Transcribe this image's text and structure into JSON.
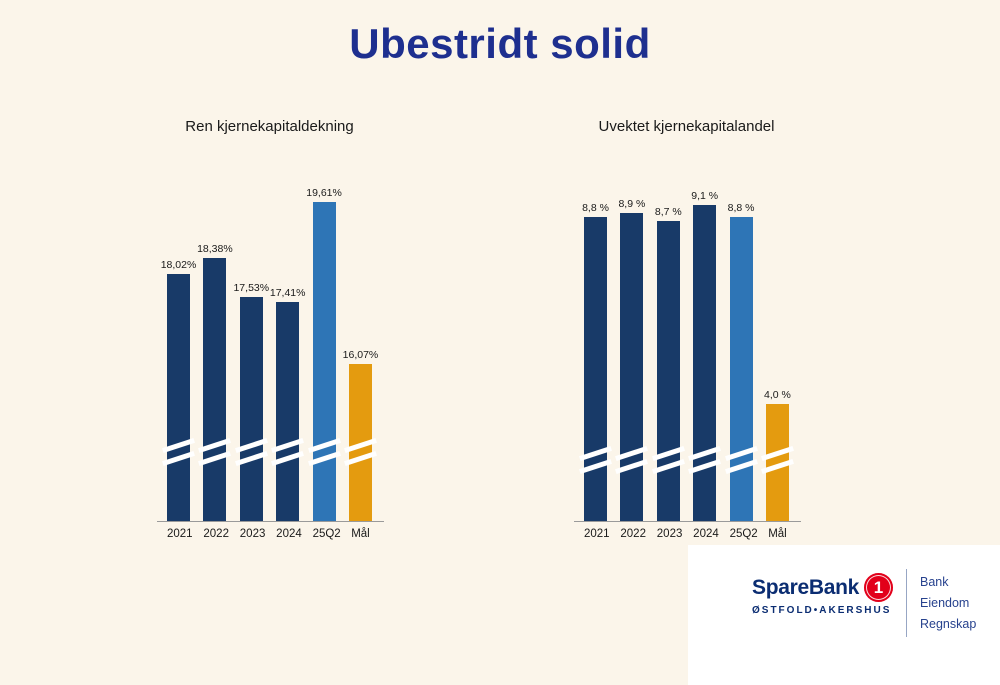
{
  "page": {
    "title": "Ubestridt solid"
  },
  "colors": {
    "background": "#fbf5ea",
    "navy": "#183a68",
    "lightblue": "#2e75b6",
    "orange": "#e49b0f",
    "title_blue": "#1e2f8f",
    "logo_blue": "#0b2d72",
    "logo_red": "#e2001a",
    "services_blue": "#27428e"
  },
  "chart_data": [
    {
      "type": "bar",
      "title": "Ren kjernekapitaldekning",
      "categories": [
        "2021",
        "2022",
        "2023",
        "2024",
        "25Q2",
        "Mål"
      ],
      "values": [
        18.02,
        18.38,
        17.53,
        17.41,
        19.61,
        16.07
      ],
      "value_labels": [
        "18,02%",
        "18,38%",
        "17,53%",
        "17,41%",
        "19,61%",
        "16,07%"
      ],
      "bar_colors": [
        "navy",
        "navy",
        "navy",
        "navy",
        "lightblue",
        "orange"
      ],
      "unit": "%",
      "axis_break": true,
      "grid": false,
      "legend": "none"
    },
    {
      "type": "bar",
      "title": "Uvektet kjernekapitalandel",
      "categories": [
        "2021",
        "2022",
        "2023",
        "2024",
        "25Q2",
        "Mål"
      ],
      "values": [
        8.8,
        8.9,
        8.7,
        9.1,
        8.8,
        4.0
      ],
      "value_labels": [
        "8,8 %",
        "8,9 %",
        "8,7 %",
        "9,1 %",
        "8,8 %",
        "4,0 %"
      ],
      "bar_colors": [
        "navy",
        "navy",
        "navy",
        "navy",
        "lightblue",
        "orange"
      ],
      "unit": "%",
      "axis_break": true,
      "grid": false,
      "legend": "none"
    }
  ],
  "logo": {
    "brand": "SpareBank",
    "badge": "1",
    "region": "ØSTFOLD•AKERSHUS",
    "services": [
      "Bank",
      "Eiendom",
      "Regnskap"
    ]
  }
}
